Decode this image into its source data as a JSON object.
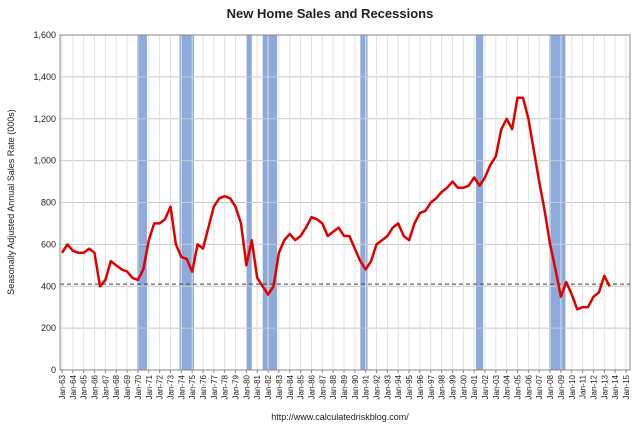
{
  "chart_data": {
    "type": "line",
    "title": "New Home Sales and Recessions",
    "y_label": "Seasonally Adjusted Annual Sales Rate (000s)",
    "source": "http://www.calculatedriskblog.com/",
    "xlim": [
      "Jan-63",
      "Jan-15"
    ],
    "xticks": [
      "Jan-63",
      "Jan-64",
      "Jan-65",
      "Jan-66",
      "Jan-67",
      "Jan-68",
      "Jan-69",
      "Jan-70",
      "Jan-71",
      "Jan-72",
      "Jan-73",
      "Jan-74",
      "Jan-75",
      "Jan-76",
      "Jan-77",
      "Jan-78",
      "Jan-79",
      "Jan-80",
      "Jan-81",
      "Jan-82",
      "Jan-83",
      "Jan-84",
      "Jan-85",
      "Jan-86",
      "Jan-87",
      "Jan-88",
      "Jan-89",
      "Jan-90",
      "Jan-91",
      "Jan-92",
      "Jan-93",
      "Jan-94",
      "Jan-95",
      "Jan-96",
      "Jan-97",
      "Jan-98",
      "Jan-99",
      "Jan-00",
      "Jan-01",
      "Jan-02",
      "Jan-03",
      "Jan-04",
      "Jan-05",
      "Jan-06",
      "Jan-07",
      "Jan-08",
      "Jan-09",
      "Jan-10",
      "Jan-11",
      "Jan-12",
      "Jan-13",
      "Jan-14",
      "Jan-15"
    ],
    "ylim": [
      0,
      1600
    ],
    "yticks": [
      0,
      200,
      400,
      600,
      800,
      {
        "value": 1000,
        "label": "1,000"
      },
      {
        "value": 1200,
        "label": "1,200"
      },
      {
        "value": 1400,
        "label": "1,400"
      },
      {
        "value": 1600,
        "label": "1,600"
      }
    ],
    "grid": true,
    "reference_line": 410,
    "recession_color": "#8eaadb",
    "recessions": [
      {
        "start": "Dec-69",
        "end": "Nov-70"
      },
      {
        "start": "Nov-73",
        "end": "Mar-75"
      },
      {
        "start": "Jan-80",
        "end": "Jul-80"
      },
      {
        "start": "Jul-81",
        "end": "Nov-82"
      },
      {
        "start": "Jul-90",
        "end": "Mar-91"
      },
      {
        "start": "Mar-01",
        "end": "Nov-01"
      },
      {
        "start": "Dec-07",
        "end": "Jun-09"
      }
    ],
    "x": [
      "Jan-63",
      "Jul-63",
      "Jan-64",
      "Jul-64",
      "Jan-65",
      "Jul-65",
      "Jan-66",
      "Jul-66",
      "Jan-67",
      "Jul-67",
      "Jan-68",
      "Jul-68",
      "Jan-69",
      "Jul-69",
      "Jan-70",
      "Jul-70",
      "Jan-71",
      "Jul-71",
      "Jan-72",
      "Jul-72",
      "Jan-73",
      "Jul-73",
      "Jan-74",
      "Jul-74",
      "Jan-75",
      "Jul-75",
      "Jan-76",
      "Jul-76",
      "Jan-77",
      "Jul-77",
      "Jan-78",
      "Jul-78",
      "Jan-79",
      "Jul-79",
      "Jan-80",
      "Jul-80",
      "Jan-81",
      "Jul-81",
      "Jan-82",
      "Jul-82",
      "Jan-83",
      "Jul-83",
      "Jan-84",
      "Jul-84",
      "Jan-85",
      "Jul-85",
      "Jan-86",
      "Jul-86",
      "Jan-87",
      "Jul-87",
      "Jan-88",
      "Jul-88",
      "Jan-89",
      "Jul-89",
      "Jan-90",
      "Jul-90",
      "Jan-91",
      "Jul-91",
      "Jan-92",
      "Jul-92",
      "Jan-93",
      "Jul-93",
      "Jan-94",
      "Jul-94",
      "Jan-95",
      "Jul-95",
      "Jan-96",
      "Jul-96",
      "Jan-97",
      "Jul-97",
      "Jan-98",
      "Jul-98",
      "Jan-99",
      "Jul-99",
      "Jan-00",
      "Jul-00",
      "Jan-01",
      "Jul-01",
      "Jan-02",
      "Jul-02",
      "Jan-03",
      "Jul-03",
      "Jan-04",
      "Jul-04",
      "Jan-05",
      "Jul-05",
      "Jan-06",
      "Jul-06",
      "Jan-07",
      "Jul-07",
      "Jan-08",
      "Jul-08",
      "Jan-09",
      "Jul-09",
      "Jan-10",
      "Jul-10",
      "Jan-11",
      "Jul-11",
      "Jan-12",
      "Jul-12",
      "Jan-13",
      "Jul-13"
    ],
    "series": [
      {
        "name": "New Home Sales",
        "color": "#e00000",
        "values": [
          560,
          600,
          570,
          560,
          560,
          580,
          560,
          400,
          430,
          520,
          500,
          480,
          470,
          440,
          430,
          480,
          620,
          700,
          700,
          720,
          780,
          600,
          540,
          530,
          470,
          600,
          580,
          680,
          780,
          820,
          830,
          820,
          780,
          700,
          500,
          620,
          440,
          400,
          360,
          400,
          560,
          620,
          650,
          620,
          640,
          680,
          730,
          720,
          700,
          640,
          660,
          680,
          640,
          640,
          580,
          520,
          480,
          520,
          600,
          620,
          640,
          680,
          700,
          640,
          620,
          700,
          750,
          760,
          800,
          820,
          850,
          870,
          900,
          870,
          870,
          880,
          920,
          880,
          920,
          980,
          1020,
          1150,
          1200,
          1150,
          1300,
          1300,
          1200,
          1050,
          900,
          760,
          600,
          480,
          350,
          420,
          360,
          290,
          300,
          300,
          350,
          370,
          450,
          400
        ]
      }
    ]
  }
}
